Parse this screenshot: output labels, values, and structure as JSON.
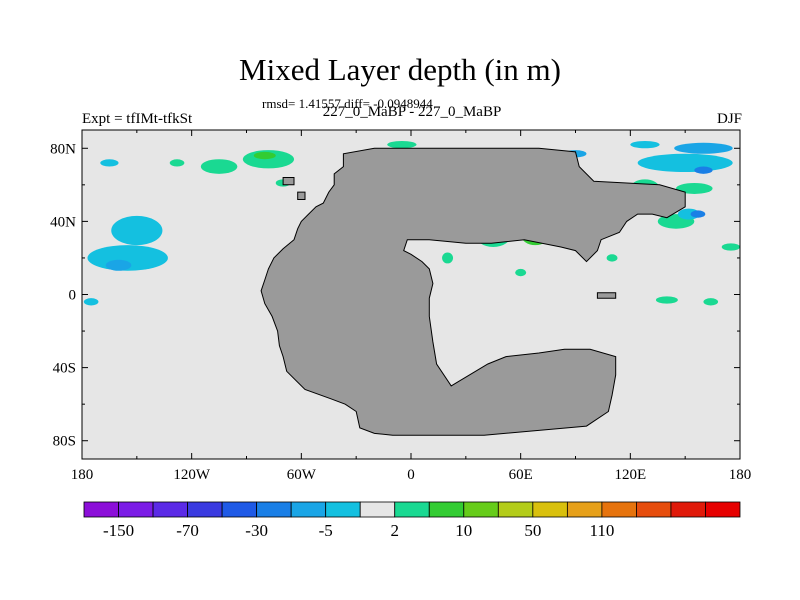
{
  "chart_data": {
    "type": "heatmap",
    "title": "Mixed Layer depth (in m)",
    "stats_text": "rmsd= 1.41557 diff= -0.0948944",
    "subtitle_left": "Expt = tfIMt-tfkSt",
    "subtitle_center": "227_0_MaBP - 227_0_MaBP",
    "subtitle_right": "DJF",
    "x_range": [
      -180,
      180
    ],
    "y_range": [
      -90,
      90
    ],
    "x_ticks": [
      {
        "value": -180,
        "label": "180"
      },
      {
        "value": -120,
        "label": "120W"
      },
      {
        "value": -60,
        "label": "60W"
      },
      {
        "value": 0,
        "label": "0"
      },
      {
        "value": 60,
        "label": "60E"
      },
      {
        "value": 120,
        "label": "120E"
      },
      {
        "value": 180,
        "label": "180"
      }
    ],
    "y_ticks": [
      {
        "value": 80,
        "label": "80N"
      },
      {
        "value": 40,
        "label": "40N"
      },
      {
        "value": 0,
        "label": "0"
      },
      {
        "value": -40,
        "label": "40S"
      },
      {
        "value": -80,
        "label": "80S"
      }
    ],
    "colorbar": {
      "colors": [
        "#8c0fd9",
        "#7b1ce6",
        "#5b2ae6",
        "#3a3ae0",
        "#1f5ae6",
        "#1a7fe6",
        "#1aa5e6",
        "#14c0e0",
        "#e6e6e6",
        "#1ad992",
        "#33cc33",
        "#66cc1a",
        "#b3cc1a",
        "#d9c00d",
        "#e6a01a",
        "#e6730d",
        "#e64d0d",
        "#e01a0a",
        "#e60000"
      ],
      "labels": [
        {
          "index": 1,
          "label": "-150"
        },
        {
          "index": 3,
          "label": "-70"
        },
        {
          "index": 5,
          "label": "-30"
        },
        {
          "index": 7,
          "label": "-5"
        },
        {
          "index": 9,
          "label": "2"
        },
        {
          "index": 11,
          "label": "10"
        },
        {
          "index": 13,
          "label": "50"
        },
        {
          "index": 15,
          "label": "110"
        }
      ]
    },
    "land_color": "#9a9a9a",
    "ocean_color": "#e6e6e6",
    "land_outline": [
      [
        -37,
        77
      ],
      [
        -37,
        70
      ],
      [
        -42,
        66
      ],
      [
        -42,
        60
      ],
      [
        -45,
        56
      ],
      [
        -48,
        50
      ],
      [
        -52,
        48
      ],
      [
        -56,
        44
      ],
      [
        -60,
        40
      ],
      [
        -62,
        36
      ],
      [
        -64,
        30
      ],
      [
        -70,
        25
      ],
      [
        -75,
        20
      ],
      [
        -78,
        14
      ],
      [
        -80,
        8
      ],
      [
        -82,
        2
      ],
      [
        -80,
        -5
      ],
      [
        -76,
        -12
      ],
      [
        -73,
        -20
      ],
      [
        -72,
        -28
      ],
      [
        -70,
        -34
      ],
      [
        -68,
        -42
      ],
      [
        -58,
        -52
      ],
      [
        -44,
        -57
      ],
      [
        -36,
        -60
      ],
      [
        -30,
        -64
      ],
      [
        -28,
        -73
      ],
      [
        -20,
        -76
      ],
      [
        -10,
        -77
      ],
      [
        40,
        -77
      ],
      [
        96,
        -72
      ],
      [
        108,
        -64
      ],
      [
        110,
        -55
      ],
      [
        112,
        -44
      ],
      [
        112,
        -34
      ],
      [
        98,
        -30
      ],
      [
        84,
        -30
      ],
      [
        70,
        -32
      ],
      [
        52,
        -34
      ],
      [
        42,
        -38
      ],
      [
        32,
        -44
      ],
      [
        22,
        -50
      ],
      [
        14,
        -38
      ],
      [
        12,
        -26
      ],
      [
        10,
        -12
      ],
      [
        10,
        -2
      ],
      [
        12,
        6
      ],
      [
        10,
        14
      ],
      [
        6,
        18
      ],
      [
        0,
        22
      ],
      [
        -4,
        24
      ],
      [
        -2,
        30
      ],
      [
        10,
        30
      ],
      [
        30,
        28
      ],
      [
        44,
        28
      ],
      [
        62,
        30
      ],
      [
        82,
        26
      ],
      [
        90,
        24
      ],
      [
        96,
        18
      ],
      [
        102,
        24
      ],
      [
        104,
        30
      ],
      [
        114,
        34
      ],
      [
        118,
        40
      ],
      [
        124,
        44
      ],
      [
        132,
        44
      ],
      [
        140,
        42
      ],
      [
        150,
        48
      ],
      [
        150,
        56
      ],
      [
        136,
        60
      ],
      [
        100,
        62
      ],
      [
        92,
        70
      ],
      [
        90,
        78
      ],
      [
        70,
        80
      ],
      [
        40,
        80
      ],
      [
        -20,
        80
      ],
      [
        -37,
        77
      ]
    ],
    "land_islands": [
      [
        [
          102,
          -2
        ],
        [
          112,
          -2
        ],
        [
          112,
          1
        ],
        [
          102,
          1
        ]
      ],
      [
        [
          -70,
          64
        ],
        [
          -64,
          64
        ],
        [
          -64,
          60
        ],
        [
          -70,
          60
        ]
      ],
      [
        [
          -62,
          56
        ],
        [
          -58,
          56
        ],
        [
          -58,
          52
        ],
        [
          -62,
          52
        ]
      ]
    ],
    "anomaly_patches": [
      {
        "lon": -150,
        "lat": 35,
        "rx": 14,
        "ry": 8,
        "color": "#14c0e0"
      },
      {
        "lon": -155,
        "lat": 20,
        "rx": 22,
        "ry": 7,
        "color": "#14c0e0"
      },
      {
        "lon": -160,
        "lat": 16,
        "rx": 7,
        "ry": 3,
        "color": "#1aa5e6"
      },
      {
        "lon": -175,
        "lat": -4,
        "rx": 4,
        "ry": 2,
        "color": "#14c0e0"
      },
      {
        "lon": -165,
        "lat": 72,
        "rx": 5,
        "ry": 2,
        "color": "#14c0e0"
      },
      {
        "lon": -105,
        "lat": 70,
        "rx": 10,
        "ry": 4,
        "color": "#1ad992"
      },
      {
        "lon": -78,
        "lat": 74,
        "rx": 14,
        "ry": 5,
        "color": "#1ad992"
      },
      {
        "lon": -80,
        "lat": 76,
        "rx": 6,
        "ry": 2,
        "color": "#33cc33"
      },
      {
        "lon": -128,
        "lat": 72,
        "rx": 4,
        "ry": 2,
        "color": "#1ad992"
      },
      {
        "lon": -70,
        "lat": 61,
        "rx": 4,
        "ry": 2,
        "color": "#1ad992"
      },
      {
        "lon": -5,
        "lat": 82,
        "rx": 8,
        "ry": 2,
        "color": "#1ad992"
      },
      {
        "lon": 90,
        "lat": 77,
        "rx": 6,
        "ry": 2,
        "color": "#1aa5e6"
      },
      {
        "lon": 45,
        "lat": 33,
        "rx": 10,
        "ry": 7,
        "color": "#1ad992"
      },
      {
        "lon": 52,
        "lat": 35,
        "rx": 7,
        "ry": 5,
        "color": "#33cc33"
      },
      {
        "lon": 68,
        "lat": 33,
        "rx": 8,
        "ry": 6,
        "color": "#33cc33"
      },
      {
        "lon": 73,
        "lat": 36,
        "rx": 4,
        "ry": 3,
        "color": "#b3cc1a"
      },
      {
        "lon": 60,
        "lat": 38,
        "rx": 4,
        "ry": 3,
        "color": "#b3cc1a"
      },
      {
        "lon": 30,
        "lat": 33,
        "rx": 4,
        "ry": 3,
        "color": "#14c0e0"
      },
      {
        "lon": 20,
        "lat": 20,
        "rx": 3,
        "ry": 3,
        "color": "#1ad992"
      },
      {
        "lon": 60,
        "lat": 12,
        "rx": 3,
        "ry": 2,
        "color": "#1ad992"
      },
      {
        "lon": 110,
        "lat": 20,
        "rx": 3,
        "ry": 2,
        "color": "#1ad992"
      },
      {
        "lon": 128,
        "lat": 58,
        "rx": 8,
        "ry": 5,
        "color": "#1ad992"
      },
      {
        "lon": 155,
        "lat": 58,
        "rx": 10,
        "ry": 3,
        "color": "#1ad992"
      },
      {
        "lon": 150,
        "lat": 72,
        "rx": 26,
        "ry": 5,
        "color": "#14c0e0"
      },
      {
        "lon": 160,
        "lat": 80,
        "rx": 16,
        "ry": 3,
        "color": "#1aa5e6"
      },
      {
        "lon": 128,
        "lat": 82,
        "rx": 8,
        "ry": 2,
        "color": "#14c0e0"
      },
      {
        "lon": 160,
        "lat": 68,
        "rx": 5,
        "ry": 2,
        "color": "#1a7fe6"
      },
      {
        "lon": 145,
        "lat": 40,
        "rx": 10,
        "ry": 4,
        "color": "#1ad992"
      },
      {
        "lon": 152,
        "lat": 44,
        "rx": 6,
        "ry": 3,
        "color": "#14c0e0"
      },
      {
        "lon": 157,
        "lat": 44,
        "rx": 4,
        "ry": 2,
        "color": "#1a7fe6"
      },
      {
        "lon": 175,
        "lat": 26,
        "rx": 5,
        "ry": 2,
        "color": "#1ad992"
      },
      {
        "lon": 140,
        "lat": -3,
        "rx": 6,
        "ry": 2,
        "color": "#1ad992"
      },
      {
        "lon": 164,
        "lat": -4,
        "rx": 4,
        "ry": 2,
        "color": "#1ad992"
      }
    ]
  }
}
